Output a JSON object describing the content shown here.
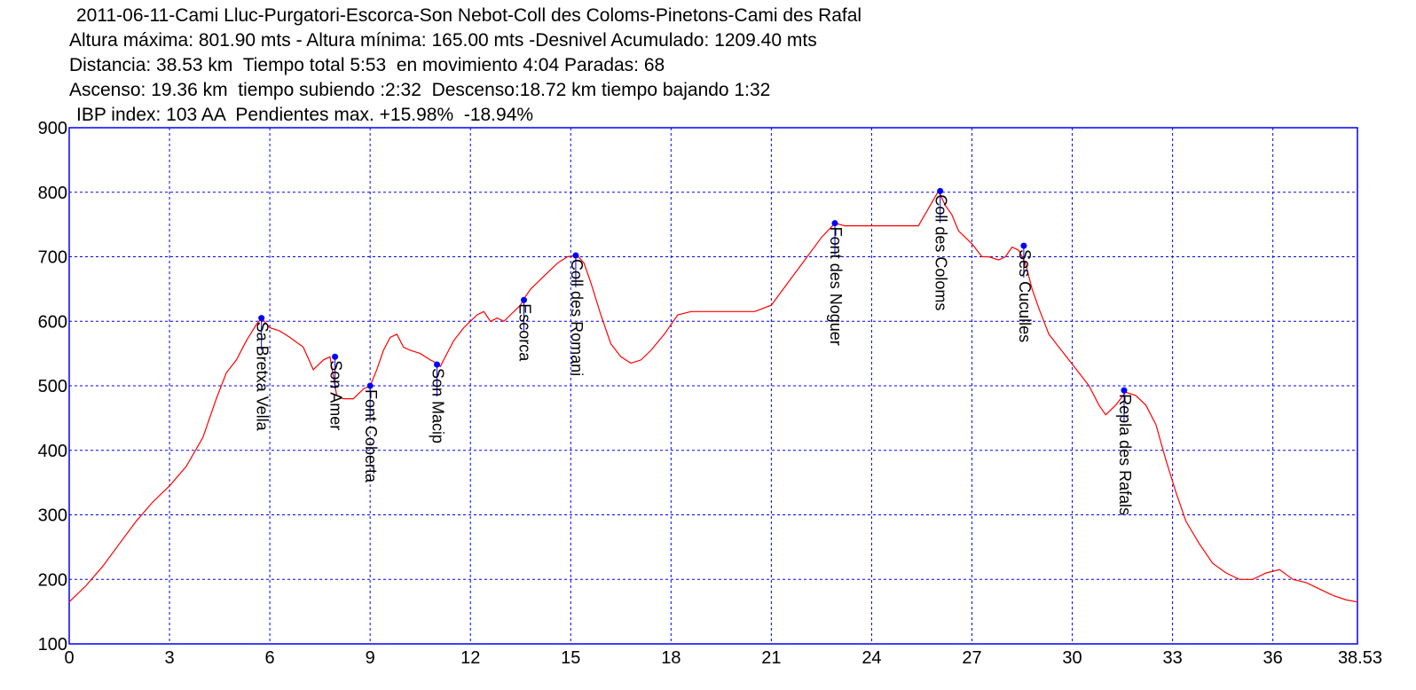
{
  "header": {
    "line1": "2011-06-11-Cami Lluc-Purgatori-Escorca-Son Nebot-Coll des Coloms-Pinetons-Cami des Rafal",
    "line2": "Altura máxima: 801.90 mts - Altura mínima: 165.00 mts -Desnivel Acumulado: 1209.40 mts",
    "line3": "Distancia: 38.53 km  Tiempo total 5:53  en movimiento 4:04 Paradas: 68",
    "line4": "Ascenso: 19.36 km  tiempo subiendo :2:32  Descenso:18.72 km tiempo bajando 1:32",
    "line5": "IBP index: 103 AA  Pendientes max. +15.98%  -18.94%"
  },
  "chart_data": {
    "type": "line",
    "title": "2011-06-11-Cami Lluc-Purgatori-Escorca-Son Nebot-Coll des Coloms-Pinetons-Cami des Rafal",
    "xlabel": "",
    "ylabel": "",
    "xlim": [
      0,
      38.53
    ],
    "ylim": [
      100,
      900
    ],
    "grid": true,
    "x_ticks": [
      "0",
      "3",
      "6",
      "9",
      "12",
      "15",
      "18",
      "21",
      "24",
      "27",
      "30",
      "33",
      "36",
      "38.53"
    ],
    "y_ticks": [
      "100",
      "200",
      "300",
      "400",
      "500",
      "600",
      "700",
      "800",
      "900"
    ],
    "x_tick_values": [
      0,
      3,
      6,
      9,
      12,
      15,
      18,
      21,
      24,
      27,
      30,
      33,
      36,
      38.53
    ],
    "y_tick_values": [
      100,
      200,
      300,
      400,
      500,
      600,
      700,
      800,
      900
    ],
    "colors": {
      "line": "#ff0000",
      "grid": "#0000ff",
      "frame": "#0000ff",
      "waypoint": "#0000ff",
      "background": "#ffffff"
    },
    "series": [
      {
        "x": [
          0,
          0.5,
          1.0,
          1.5,
          2.0,
          2.5,
          3.0,
          3.5,
          4.0,
          4.4,
          4.7,
          5.0,
          5.3,
          5.6,
          5.75,
          6.0,
          6.3,
          6.6,
          7.0,
          7.3,
          7.6,
          7.8,
          8.0,
          8.2,
          8.5,
          8.8,
          9.0,
          9.2,
          9.4,
          9.6,
          9.8,
          10.0,
          10.2,
          10.5,
          10.8,
          11.0,
          11.1,
          11.3,
          11.5,
          11.8,
          12.0,
          12.2,
          12.4,
          12.6,
          12.8,
          13.0,
          13.2,
          13.5,
          13.6,
          13.8,
          14.0,
          14.3,
          14.6,
          14.9,
          15.2,
          15.4,
          15.6,
          15.9,
          16.2,
          16.5,
          16.8,
          17.1,
          17.4,
          17.8,
          18.2,
          18.6,
          19.0,
          19.5,
          20.0,
          20.5,
          21.0,
          21.5,
          22.0,
          22.5,
          22.9,
          23.2,
          23.6,
          24.0,
          24.5,
          25.0,
          25.4,
          25.7,
          26.0,
          26.2,
          26.4,
          26.6,
          27.0,
          27.3,
          27.5,
          27.8,
          28.0,
          28.2,
          28.4,
          28.6,
          28.8,
          29.0,
          29.3,
          29.6,
          29.9,
          30.2,
          30.5,
          30.8,
          31.0,
          31.3,
          31.6,
          31.9,
          32.2,
          32.5,
          32.8,
          33.1,
          33.4,
          33.8,
          34.2,
          34.6,
          35.0,
          35.4,
          35.8,
          36.2,
          36.6,
          37.0,
          37.4,
          37.8,
          38.2,
          38.53
        ],
        "y": [
          165,
          190,
          220,
          255,
          290,
          320,
          345,
          375,
          420,
          480,
          520,
          540,
          570,
          595,
          605,
          590,
          585,
          575,
          560,
          525,
          540,
          545,
          485,
          480,
          480,
          495,
          500,
          525,
          555,
          575,
          580,
          560,
          555,
          550,
          540,
          535,
          530,
          550,
          570,
          590,
          600,
          610,
          615,
          600,
          605,
          600,
          610,
          625,
          635,
          650,
          660,
          675,
          690,
          700,
          702,
          690,
          660,
          610,
          565,
          545,
          535,
          540,
          555,
          580,
          610,
          615,
          615,
          615,
          615,
          615,
          625,
          660,
          695,
          730,
          752,
          748,
          748,
          748,
          748,
          748,
          748,
          775,
          801.9,
          780,
          765,
          740,
          720,
          700,
          700,
          695,
          700,
          715,
          710,
          690,
          650,
          620,
          580,
          560,
          540,
          520,
          500,
          470,
          455,
          470,
          490,
          485,
          470,
          440,
          385,
          335,
          290,
          255,
          225,
          210,
          200,
          200,
          210,
          215,
          200,
          195,
          185,
          175,
          168,
          165
        ]
      }
    ],
    "waypoints": [
      {
        "name": "Sa Bretxa Vella",
        "x": 5.75,
        "y": 605
      },
      {
        "name": "Son Amer",
        "x": 7.95,
        "y": 545
      },
      {
        "name": "Font Coberta",
        "x": 9.0,
        "y": 500
      },
      {
        "name": "Son Macip",
        "x": 11.0,
        "y": 533
      },
      {
        "name": "Escorca",
        "x": 13.6,
        "y": 633
      },
      {
        "name": "Coll des Romani",
        "x": 15.15,
        "y": 702
      },
      {
        "name": "Font des Noguer",
        "x": 22.9,
        "y": 752
      },
      {
        "name": "Coll des Coloms",
        "x": 26.05,
        "y": 801.9
      },
      {
        "name": "Ses Cuculles",
        "x": 28.55,
        "y": 717
      },
      {
        "name": "Repla des Rafals",
        "x": 31.55,
        "y": 493
      }
    ]
  }
}
